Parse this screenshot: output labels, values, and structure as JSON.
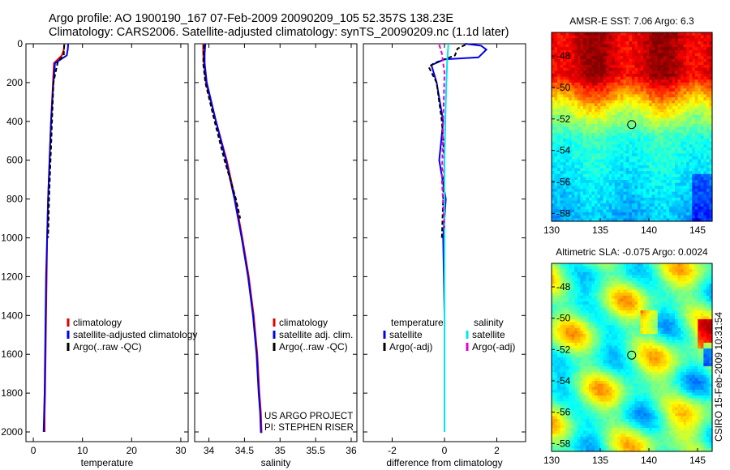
{
  "header": {
    "line1": "Argo profile: AO 1900190_167 07-Feb-2009 20090209_105 52.357S 138.23E",
    "line2": "Climatology: CARS2006. Satellite-adjusted climatology: synTS_20090209.nc (1.1d later)"
  },
  "side_label": "CSIRO 15-Feb-2009 10:31:54",
  "colors": {
    "climatology": "#e00000",
    "satellite": "#0000ee",
    "argo": "#000000",
    "satellite_salinity": "#00e5ee",
    "argo_salinity_adj": "#e000e0"
  },
  "chart_data": [
    {
      "id": "temperature",
      "type": "line",
      "xlabel": "temperature",
      "xlim": [
        -1.5,
        31.5
      ],
      "ylim": [
        0,
        2050
      ],
      "xticks": [
        0,
        10,
        20,
        30
      ],
      "yticks": [
        0,
        200,
        400,
        600,
        800,
        1000,
        1200,
        1400,
        1600,
        1800,
        2000
      ],
      "y_reversed": true,
      "legend": [
        "climatology",
        "satellite-adjusted climatology",
        "Argo(..raw -QC)"
      ],
      "series": [
        {
          "name": "climatology",
          "color": "#e00000",
          "x": [
            6.3,
            6.2,
            5.8,
            4.2,
            4.0,
            3.6,
            3.3,
            3.0,
            2.8,
            2.7,
            2.6,
            2.5,
            2.4,
            2.3,
            2.3
          ],
          "y": [
            0,
            30,
            60,
            100,
            200,
            400,
            600,
            800,
            1000,
            1200,
            1400,
            1600,
            1800,
            1900,
            2000
          ]
        },
        {
          "name": "satellite-adjusted climatology",
          "color": "#0000ee",
          "x": [
            7.1,
            7.0,
            6.8,
            4.4,
            4.1,
            3.6,
            3.3,
            3.0,
            2.8,
            2.6,
            2.5,
            2.4,
            2.3,
            2.2,
            2.1
          ],
          "y": [
            0,
            30,
            60,
            100,
            200,
            400,
            600,
            800,
            1000,
            1200,
            1400,
            1600,
            1800,
            1900,
            2000
          ]
        },
        {
          "name": "Argo(..raw -QC)",
          "color": "#000000",
          "x": [
            6.3,
            6.2,
            6.2,
            5.0,
            4.1,
            3.8,
            3.5,
            3.2,
            3.0
          ],
          "y": [
            5,
            30,
            60,
            90,
            200,
            400,
            600,
            800,
            1000
          ]
        }
      ]
    },
    {
      "id": "salinity",
      "type": "line",
      "xlabel": "salinity",
      "xlim": [
        33.8,
        36.08
      ],
      "ylim": [
        0,
        2050
      ],
      "xticks": [
        34,
        34.5,
        35,
        35.5,
        36
      ],
      "xticklabels": [
        "34",
        "34.5",
        "35",
        "35.5",
        "36"
      ],
      "y_reversed": true,
      "legend": [
        "climatology",
        "satellite adj. clim.",
        "Argo(..raw -QC)"
      ],
      "annotation": [
        "US ARGO PROJECT",
        "PI: STEPHEN RISER"
      ],
      "series": [
        {
          "name": "climatology",
          "color": "#e00000",
          "x": [
            33.92,
            33.92,
            33.93,
            33.96,
            34.1,
            34.25,
            34.37,
            34.47,
            34.56,
            34.63,
            34.68,
            34.71,
            34.73,
            34.74,
            34.74
          ],
          "y": [
            0,
            50,
            100,
            200,
            400,
            600,
            800,
            1000,
            1200,
            1400,
            1600,
            1800,
            1900,
            2000,
            2005
          ]
        },
        {
          "name": "satellite adj. clim.",
          "color": "#0000ee",
          "x": [
            33.95,
            33.94,
            33.94,
            33.97,
            34.1,
            34.24,
            34.36,
            34.46,
            34.55,
            34.62,
            34.67,
            34.7,
            34.72,
            34.73,
            34.73
          ],
          "y": [
            0,
            50,
            100,
            200,
            400,
            600,
            800,
            1000,
            1200,
            1400,
            1600,
            1800,
            1900,
            2000,
            2005
          ]
        },
        {
          "name": "Argo(..raw -QC)",
          "color": "#000000",
          "x": [
            33.93,
            33.92,
            33.95,
            34.08,
            34.22,
            34.3,
            34.38,
            34.44
          ],
          "y": [
            5,
            100,
            200,
            400,
            600,
            700,
            800,
            900
          ]
        }
      ]
    },
    {
      "id": "difference",
      "type": "line",
      "xlabel": "difference from climatology",
      "xlim": [
        -3.1,
        3.1
      ],
      "ylim": [
        0,
        2050
      ],
      "xticks": [
        -2,
        0,
        2
      ],
      "y_reversed": true,
      "legend_groups": [
        {
          "title": "temperature",
          "entries": [
            "satellite",
            "Argo(-adj)"
          ]
        },
        {
          "title": "salinity",
          "entries": [
            "satellite",
            "Argo(-adj)"
          ]
        }
      ],
      "series": [
        {
          "name": "temperature satellite",
          "color": "#0000ee",
          "x": [
            0.8,
            1.4,
            1.6,
            1.3,
            0.0,
            -0.5,
            -0.3,
            -0.05,
            -0.2,
            0.05,
            -0.05,
            0.0,
            0.0,
            0.0
          ],
          "y": [
            0,
            10,
            30,
            70,
            80,
            110,
            200,
            400,
            600,
            800,
            1000,
            1400,
            1800,
            2000
          ]
        },
        {
          "name": "temperature Argo(-adj)",
          "color": "#000000",
          "x": [
            0.8,
            0.5,
            0.4,
            0.0,
            -0.4,
            -0.6,
            -0.3,
            -0.1,
            0.0,
            -0.1
          ],
          "y": [
            5,
            25,
            60,
            80,
            100,
            120,
            200,
            400,
            600,
            1000
          ]
        },
        {
          "name": "salinity satellite",
          "color": "#00e5ee",
          "x": [
            0.15,
            0.1,
            0.05,
            0.0,
            0.0,
            0.0,
            0.0,
            0.0
          ],
          "y": [
            0,
            100,
            300,
            600,
            1000,
            1400,
            1800,
            2000
          ]
        },
        {
          "name": "salinity Argo(-adj)",
          "color": "#e000e0",
          "x": [
            -0.2,
            -0.1,
            0.0,
            -0.05,
            -0.1,
            0.0
          ],
          "y": [
            5,
            50,
            150,
            400,
            700,
            950
          ]
        }
      ]
    },
    {
      "id": "sst-map",
      "type": "heatmap",
      "title": "AMSR-E SST: 7.06 Argo: 6.3",
      "xlim": [
        130,
        146.5
      ],
      "ylim": [
        -58.5,
        -46.5
      ],
      "xticks": [
        130,
        135,
        140,
        145
      ],
      "yticks": [
        -48,
        -50,
        -52,
        -54,
        -56,
        -58
      ],
      "marker": {
        "lon": 138.23,
        "lat": -52.357
      },
      "colormap": "jet"
    },
    {
      "id": "sla-map",
      "type": "heatmap",
      "title": "Altimetric SLA: -0.075 Argo: 0.0024",
      "xlim": [
        130,
        146.5
      ],
      "ylim": [
        -58.5,
        -46.5
      ],
      "xticks": [
        130,
        135,
        140,
        145
      ],
      "yticks": [
        -48,
        -50,
        -52,
        -54,
        -56,
        -58
      ],
      "marker": {
        "lon": 138.23,
        "lat": -52.357
      },
      "colormap": "jet"
    }
  ]
}
